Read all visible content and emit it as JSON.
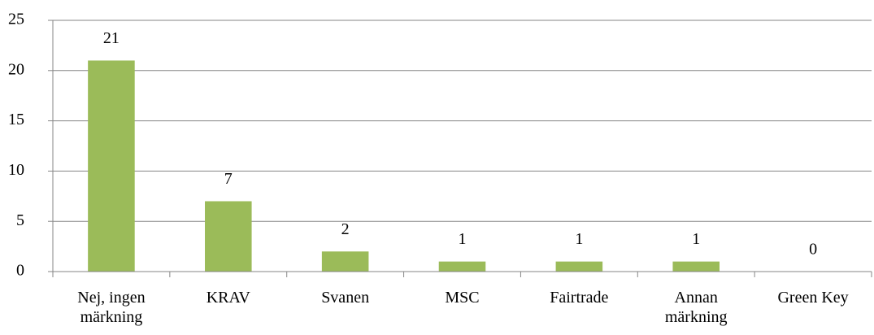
{
  "chart_data": {
    "type": "bar",
    "categories": [
      "Nej, ingen märkning",
      "KRAV",
      "Svanen",
      "MSC",
      "Fairtrade",
      "Annan märkning",
      "Green Key"
    ],
    "values": [
      21,
      7,
      2,
      1,
      1,
      1,
      0
    ],
    "color": "#9bbb59",
    "ylim": [
      0,
      25
    ],
    "yticks": [
      0,
      5,
      10,
      15,
      20,
      25
    ],
    "grid": true
  }
}
